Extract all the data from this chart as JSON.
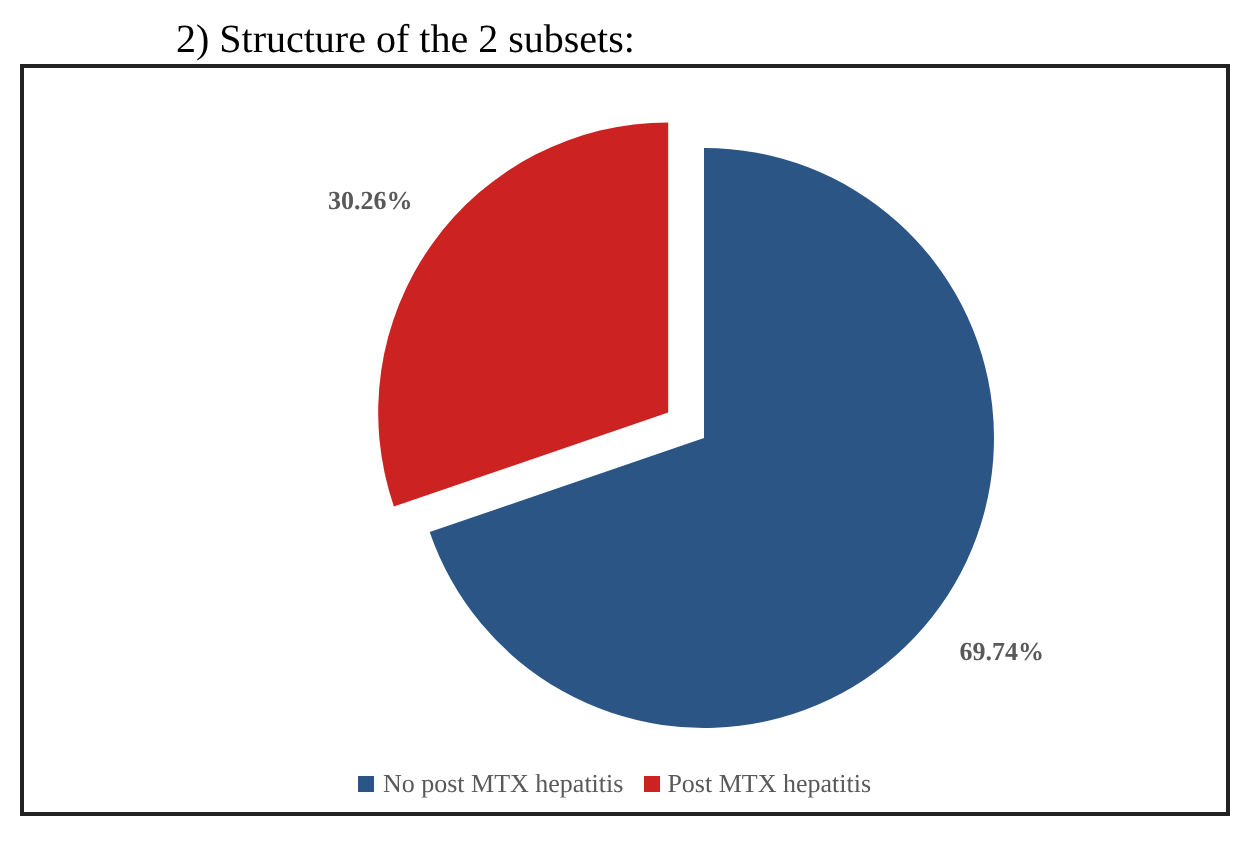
{
  "chart_data": {
    "type": "pie",
    "title": "2) Structure of the 2 subsets:",
    "categories": [
      "No post MTX hepatitis",
      "Post MTX hepatitis"
    ],
    "values": [
      69.74,
      30.26
    ],
    "colors": [
      "#2a5585",
      "#cc2222"
    ],
    "value_labels": [
      "69.74%",
      "30.26%"
    ],
    "legend": "bottom"
  }
}
